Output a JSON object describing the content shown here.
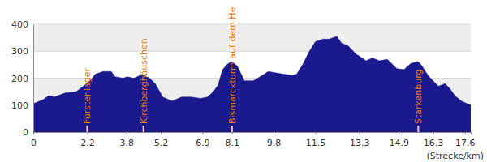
{
  "chart_data": {
    "type": "area",
    "x_label": "(Strecke/km)",
    "color": "#1a1a8e",
    "grid": true,
    "x": [
      0,
      0.4,
      0.63,
      0.85,
      1.3,
      1.75,
      2.11,
      2.36,
      2.53,
      2.85,
      3.18,
      3.34,
      3.67,
      3.83,
      4.11,
      4.34,
      4.54,
      4.74,
      4.97,
      5.28,
      5.66,
      6.05,
      6.44,
      6.82,
      7.1,
      7.34,
      7.54,
      7.71,
      7.88,
      8.08,
      8.32,
      8.61,
      8.97,
      9.33,
      9.58,
      9.87,
      10.22,
      10.56,
      10.74,
      10.98,
      11.26,
      11.5,
      11.81,
      12.07,
      12.38,
      12.57,
      12.84,
      13.15,
      13.33,
      13.57,
      13.83,
      14.1,
      14.43,
      14.67,
      14.83,
      15.12,
      15.4,
      15.68,
      15.82,
      16.1,
      16.3,
      16.52,
      16.79,
      17.0,
      17.19,
      17.46,
      17.7,
      17.84
    ],
    "values": [
      105,
      120,
      135,
      130,
      145,
      150,
      175,
      195,
      215,
      225,
      225,
      205,
      200,
      205,
      200,
      210,
      210,
      200,
      180,
      130,
      115,
      130,
      130,
      125,
      130,
      150,
      175,
      230,
      250,
      262,
      245,
      190,
      190,
      210,
      225,
      220,
      215,
      210,
      215,
      250,
      300,
      335,
      345,
      345,
      355,
      330,
      320,
      290,
      280,
      265,
      275,
      265,
      270,
      250,
      235,
      232,
      255,
      262,
      250,
      210,
      190,
      170,
      180,
      160,
      135,
      115,
      105,
      100
    ],
    "xlim": [
      0,
      17.84
    ],
    "xticks": [
      0,
      2.2,
      3.8,
      5.2,
      6.9,
      8.1,
      9.8,
      11.5,
      13.3,
      14.9,
      16.3,
      17.6
    ],
    "ylim": [
      0,
      400
    ],
    "yticks": [
      0,
      100,
      200,
      300,
      400
    ],
    "annotations": [
      {
        "x": 2.2,
        "label": "Fürstenlager"
      },
      {
        "x": 4.49,
        "label": "Kirchberghäuschen"
      },
      {
        "x": 8.1,
        "label": "Bismarckturm auf dem He"
      },
      {
        "x": 15.7,
        "label": "Starkenburg"
      }
    ]
  }
}
